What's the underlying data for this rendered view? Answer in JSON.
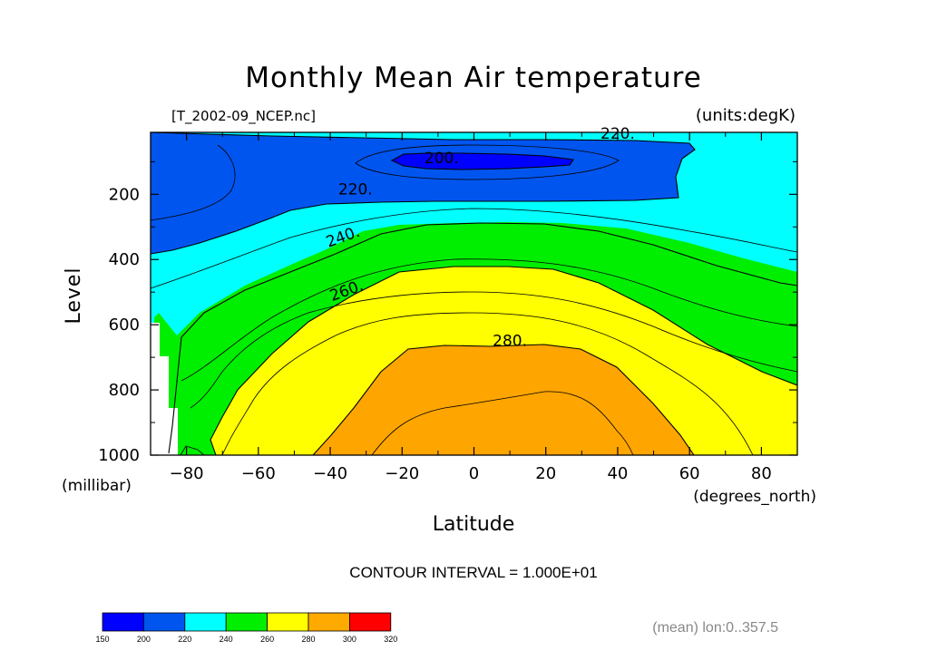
{
  "chart_data": {
    "type": "contour",
    "title": "Monthly Mean Air temperature",
    "file_label": "[T_2002-09_NCEP.nc]",
    "units_label": "(units:degK)",
    "xlabel": "Latitude",
    "xunits": "(degrees_north)",
    "ylabel": "Level",
    "yunits": "(millibar)",
    "x_range": [
      -90,
      90
    ],
    "y_range": [
      1000,
      10
    ],
    "x_ticks": [
      -80,
      -60,
      -40,
      -20,
      0,
      20,
      40,
      60,
      80
    ],
    "x_tick_labels": [
      "−80",
      "−60",
      "−40",
      "−20",
      "0",
      "20",
      "40",
      "60",
      "80"
    ],
    "y_ticks": [
      200,
      400,
      600,
      800,
      1000
    ],
    "y_tick_labels": [
      "200",
      "400",
      "600",
      "800",
      "1000"
    ],
    "contour_labels": [
      {
        "text": "220.",
        "lat": 40,
        "level": 30
      },
      {
        "text": "200.",
        "lat": -9,
        "level": 105
      },
      {
        "text": "220.",
        "lat": -33,
        "level": 200
      },
      {
        "text": "240.",
        "lat": -36,
        "level": 345
      },
      {
        "text": "260.",
        "lat": -35,
        "level": 510
      },
      {
        "text": "280.",
        "lat": 10,
        "level": 665
      }
    ],
    "contour_interval_label": "CONTOUR INTERVAL = 1.000E+01",
    "subset_label": "(mean) lon:0..357.5",
    "colorbar": {
      "levels": [
        "150",
        "200",
        "220",
        "240",
        "260",
        "280",
        "300",
        "320"
      ],
      "colors": [
        "#0000ff",
        "#0055ee",
        "#00ffff",
        "#00ee00",
        "#ffff00",
        "#ffaa00",
        "#ff0000"
      ]
    }
  }
}
